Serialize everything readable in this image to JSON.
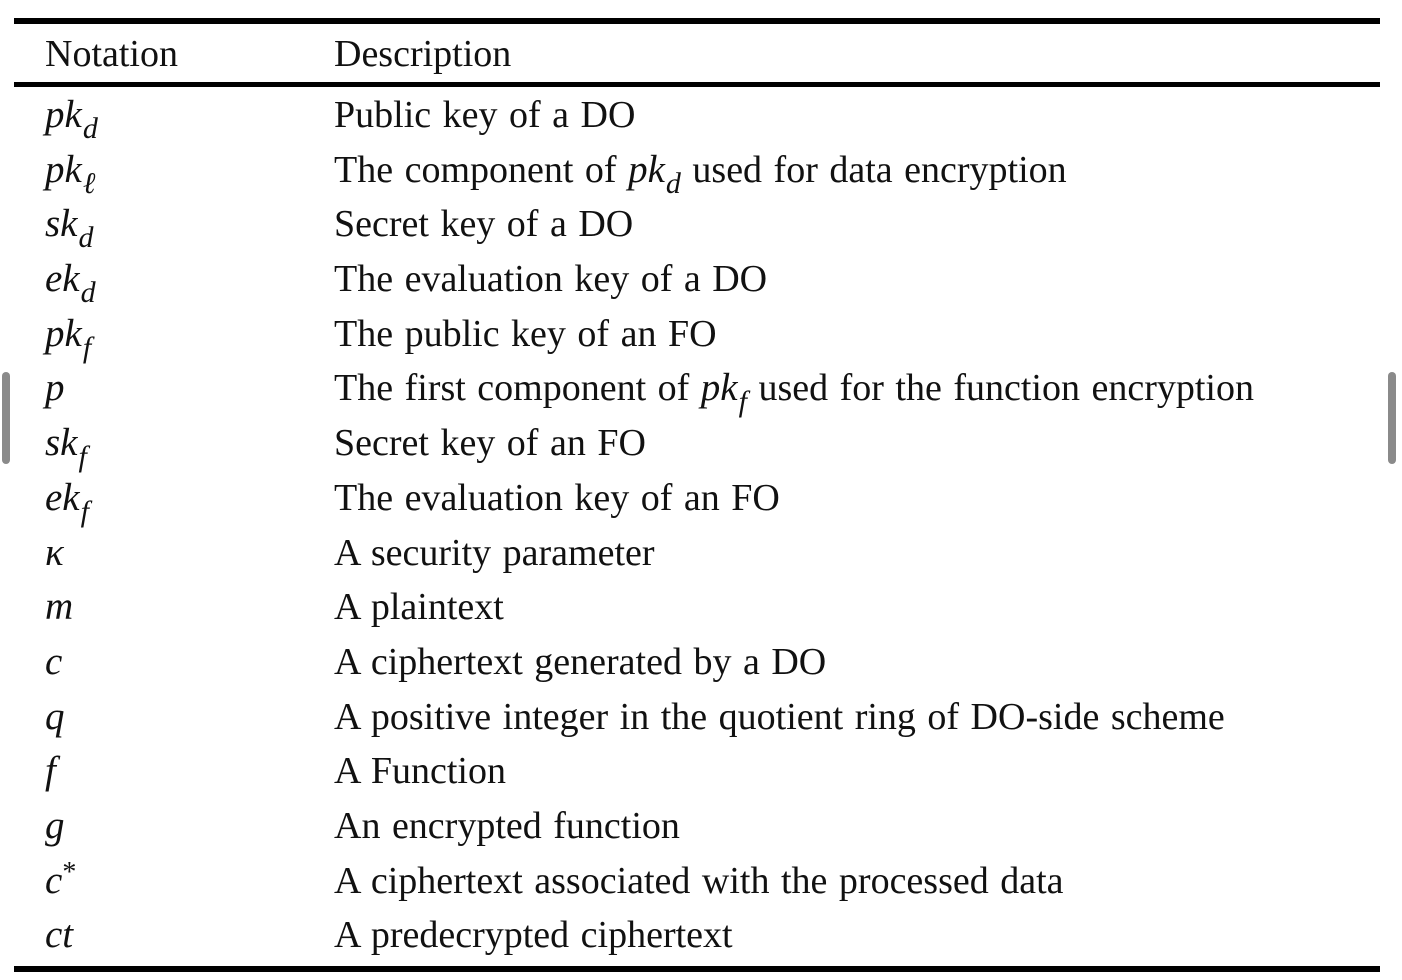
{
  "table": {
    "headers": {
      "notation": "Notation",
      "description": "Description"
    },
    "rows": [
      {
        "notation": {
          "base": "pk",
          "sub": "d"
        },
        "description": {
          "text": "Public key of a DO"
        }
      },
      {
        "notation": {
          "base": "pk",
          "sub": "ℓ"
        },
        "description": {
          "before": "The component of ",
          "math_base": "pk",
          "math_sub": "d",
          "after": " used for data encryption"
        }
      },
      {
        "notation": {
          "base": "sk",
          "sub": "d"
        },
        "description": {
          "text": "Secret key of a DO"
        }
      },
      {
        "notation": {
          "base": "ek",
          "sub": "d"
        },
        "description": {
          "text": "The evaluation key of a DO"
        }
      },
      {
        "notation": {
          "base": "pk",
          "sub": "f"
        },
        "description": {
          "text": "The public key of an FO"
        }
      },
      {
        "notation": {
          "base": "p"
        },
        "description": {
          "before": "The first component of ",
          "math_base": "pk",
          "math_sub": "f",
          "after": " used for the function encryption"
        }
      },
      {
        "notation": {
          "base": "sk",
          "sub": "f"
        },
        "description": {
          "text": "Secret key of an FO"
        }
      },
      {
        "notation": {
          "base": "ek",
          "sub": "f"
        },
        "description": {
          "text": "The evaluation key of an FO"
        }
      },
      {
        "notation": {
          "base": "κ"
        },
        "description": {
          "text": "A security parameter"
        }
      },
      {
        "notation": {
          "base": "m"
        },
        "description": {
          "text": "A plaintext"
        }
      },
      {
        "notation": {
          "base": "c"
        },
        "description": {
          "text": "A ciphertext generated by a DO"
        }
      },
      {
        "notation": {
          "base": "q"
        },
        "description": {
          "text": "A positive integer in the quotient ring of DO-side scheme"
        }
      },
      {
        "notation": {
          "base": "f"
        },
        "description": {
          "text": "A Function"
        }
      },
      {
        "notation": {
          "base": "g"
        },
        "description": {
          "text": "An encrypted function"
        }
      },
      {
        "notation": {
          "base": "c",
          "sup": "*"
        },
        "description": {
          "text": "A ciphertext associated with the processed data"
        }
      },
      {
        "notation": {
          "base": "ct"
        },
        "description": {
          "text": "A predecrypted ciphertext"
        }
      }
    ]
  }
}
